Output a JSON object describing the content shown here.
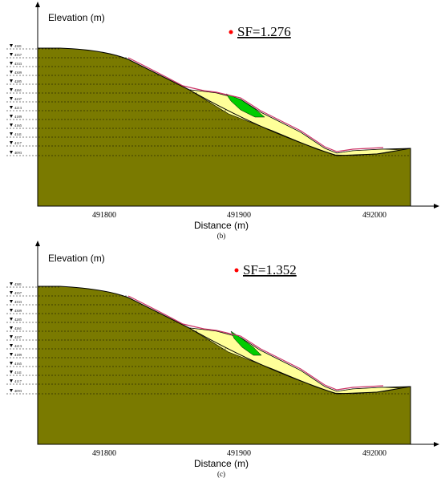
{
  "colors": {
    "ground": "#7a7a00",
    "slip_zone": "#ffff99",
    "failure_mass": "#00cc00",
    "surface_line": "#cc3366",
    "sf_dot": "#ff0000",
    "slip_surface": "#000000"
  },
  "panels": [
    {
      "panel_label": "(b)",
      "y_axis_title": "Elevation (m)",
      "x_axis_title": "Distance (m)",
      "safety_factor": "SF=1.276",
      "x_ticks": [
        "491800",
        "491900",
        "492000"
      ],
      "elevation_marks": [
        "4381",
        "4357",
        "4333",
        "4309",
        "4285",
        "4261",
        "4237",
        "4213",
        "4189",
        "4165",
        "4141",
        "4117",
        "4093"
      ]
    },
    {
      "panel_label": "(c)",
      "y_axis_title": "Elevation (m)",
      "x_axis_title": "Distance (m)",
      "safety_factor": "SF=1.352",
      "x_ticks": [
        "491800",
        "491900",
        "492000"
      ],
      "elevation_marks": [
        "4381",
        "4357",
        "4333",
        "4309",
        "4285",
        "4261",
        "4237",
        "4213",
        "4189",
        "4165",
        "4141",
        "4117",
        "4093"
      ]
    }
  ]
}
